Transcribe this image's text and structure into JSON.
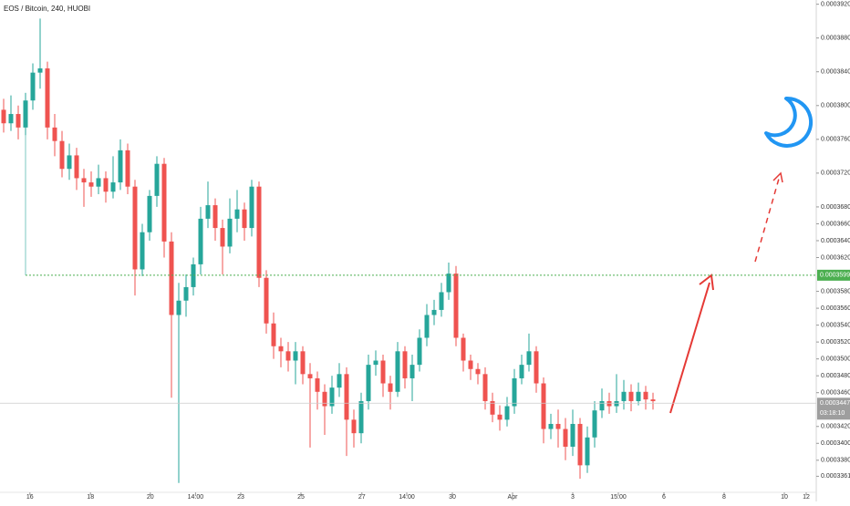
{
  "chart_data": {
    "type": "candlestick",
    "title": "EOS / Bitcoin, 240, HUOBI",
    "up_color": "#26a69a",
    "down_color": "#ef5350",
    "open": [
      0.0003795,
      0.0003779,
      0.000379,
      0.0003774,
      0.0003806,
      0.0003839,
      0.0003844,
      0.0003774,
      0.0003758,
      0.0003725,
      0.0003741,
      0.0003714,
      0.0003709,
      0.0003704,
      0.0003714,
      0.0003698,
      0.0003709,
      0.0003747,
      0.0003704,
      0.0003606,
      0.000365,
      0.0003693,
      0.0003731,
      0.0003639,
      0.0003552,
      0.0003569,
      0.0003585,
      0.0003612,
      0.0003666,
      0.0003682,
      0.0003655,
      0.0003633,
      0.0003666,
      0.0003677,
      0.0003655,
      0.0003704,
      0.0003596,
      0.0003542,
      0.0003515,
      0.0003509,
      0.0003498,
      0.0003509,
      0.0003482,
      0.0003477,
      0.0003461,
      0.0003444,
      0.0003466,
      0.0003482,
      0.0003428,
      0.0003412,
      0.000345,
      0.0003493,
      0.0003498,
      0.0003471,
      0.0003461,
      0.0003509,
      0.0003477,
      0.0003493,
      0.0003525,
      0.0003552,
      0.0003558,
      0.0003579,
      0.0003601,
      0.0003525,
      0.0003498,
      0.0003488,
      0.0003482,
      0.000345,
      0.0003434,
      0.0003428,
      0.0003444,
      0.0003477,
      0.0003493,
      0.0003509,
      0.0003471,
      0.0003417,
      0.0003423,
      0.0003417,
      0.0003396,
      0.0003423,
      0.0003374,
      0.0003407,
      0.0003439,
      0.000345,
      0.0003444,
      0.000345,
      0.0003461,
      0.000345,
      0.0003461,
      0.0003452
    ],
    "high": [
      0.0003808,
      0.0003812,
      0.00038,
      0.0003815,
      0.000385,
      0.0003903,
      0.0003852,
      0.000379,
      0.000377,
      0.0003755,
      0.000375,
      0.0003725,
      0.0003722,
      0.000373,
      0.0003722,
      0.000374,
      0.000376,
      0.0003755,
      0.0003712,
      0.000366,
      0.00037,
      0.000374,
      0.0003738,
      0.000365,
      0.000359,
      0.00036,
      0.000362,
      0.000368,
      0.000371,
      0.000369,
      0.0003665,
      0.000369,
      0.00037,
      0.0003685,
      0.0003712,
      0.000371,
      0.0003605,
      0.0003555,
      0.0003525,
      0.000352,
      0.000352,
      0.0003515,
      0.0003495,
      0.0003485,
      0.000347,
      0.000348,
      0.0003495,
      0.000349,
      0.000344,
      0.000346,
      0.0003505,
      0.000351,
      0.0003505,
      0.000348,
      0.000352,
      0.0003515,
      0.0003505,
      0.0003535,
      0.0003565,
      0.000357,
      0.000359,
      0.0003614,
      0.000361,
      0.000353,
      0.0003505,
      0.0003495,
      0.000349,
      0.000346,
      0.0003445,
      0.0003455,
      0.0003488,
      0.0003505,
      0.000353,
      0.0003515,
      0.0003478,
      0.0003435,
      0.000344,
      0.000343,
      0.000344,
      0.000343,
      0.000342,
      0.000345,
      0.0003465,
      0.000346,
      0.0003482,
      0.0003475,
      0.000347,
      0.0003472,
      0.0003468,
      0.000346
    ],
    "low": [
      0.0003768,
      0.000377,
      0.000376,
      0.0003765,
      0.0003795,
      0.000382,
      0.000376,
      0.000374,
      0.0003715,
      0.0003712,
      0.00037,
      0.000368,
      0.0003692,
      0.0003695,
      0.0003685,
      0.000369,
      0.00037,
      0.0003695,
      0.0003575,
      0.0003598,
      0.000364,
      0.000368,
      0.000362,
      0.0003454,
      0.0003353,
      0.000355,
      0.0003575,
      0.00036,
      0.0003655,
      0.000364,
      0.00036,
      0.0003625,
      0.000365,
      0.000364,
      0.0003645,
      0.0003585,
      0.000353,
      0.00035,
      0.000349,
      0.0003485,
      0.000347,
      0.000347,
      0.0003395,
      0.000344,
      0.000341,
      0.0003435,
      0.0003455,
      0.0003385,
      0.0003395,
      0.00034,
      0.000344,
      0.000348,
      0.0003455,
      0.000344,
      0.0003455,
      0.0003465,
      0.000345,
      0.0003485,
      0.0003515,
      0.000354,
      0.000355,
      0.000357,
      0.0003515,
      0.0003485,
      0.0003475,
      0.000347,
      0.000344,
      0.0003425,
      0.0003415,
      0.000342,
      0.0003435,
      0.000347,
      0.0003485,
      0.000346,
      0.00034,
      0.0003405,
      0.0003395,
      0.000338,
      0.0003385,
      0.0003358,
      0.0003365,
      0.0003395,
      0.000343,
      0.0003435,
      0.0003436,
      0.000344,
      0.0003438,
      0.0003445,
      0.000344,
      0.000344
    ],
    "close": [
      0.0003779,
      0.000379,
      0.0003774,
      0.0003806,
      0.0003839,
      0.0003844,
      0.0003774,
      0.0003758,
      0.0003725,
      0.0003741,
      0.0003714,
      0.0003709,
      0.0003704,
      0.0003714,
      0.0003698,
      0.0003709,
      0.0003747,
      0.0003704,
      0.0003606,
      0.000365,
      0.0003693,
      0.0003731,
      0.0003639,
      0.0003552,
      0.0003569,
      0.0003585,
      0.0003612,
      0.0003666,
      0.0003682,
      0.0003655,
      0.0003633,
      0.0003666,
      0.0003677,
      0.0003655,
      0.0003704,
      0.0003596,
      0.0003542,
      0.0003515,
      0.0003509,
      0.0003498,
      0.0003509,
      0.0003482,
      0.0003477,
      0.0003461,
      0.0003444,
      0.0003466,
      0.0003482,
      0.0003428,
      0.0003412,
      0.000345,
      0.0003493,
      0.0003498,
      0.0003471,
      0.0003461,
      0.0003509,
      0.0003477,
      0.0003493,
      0.0003525,
      0.0003552,
      0.0003558,
      0.0003579,
      0.0003601,
      0.0003525,
      0.0003498,
      0.0003488,
      0.0003482,
      0.000345,
      0.0003434,
      0.0003428,
      0.0003444,
      0.0003477,
      0.0003493,
      0.0003509,
      0.0003471,
      0.0003417,
      0.0003423,
      0.0003417,
      0.0003396,
      0.0003423,
      0.0003374,
      0.0003407,
      0.0003439,
      0.000345,
      0.0003444,
      0.000345,
      0.0003461,
      0.000345,
      0.0003461,
      0.0003452,
      0.000345
    ],
    "xlim": [
      -0.5,
      111.375
    ],
    "xticks": [
      {
        "value": 3.6,
        "label": "16"
      },
      {
        "value": 11.9,
        "label": "18"
      },
      {
        "value": 20.1,
        "label": "20"
      },
      {
        "value": 26.3,
        "label": "14:00"
      },
      {
        "value": 32.5,
        "label": "23"
      },
      {
        "value": 40.75,
        "label": "25"
      },
      {
        "value": 49.1,
        "label": "27"
      },
      {
        "value": 55.25,
        "label": "14:00"
      },
      {
        "value": 61.5,
        "label": "30"
      },
      {
        "value": 69.75,
        "label": "Apr"
      },
      {
        "value": 78,
        "label": "3"
      },
      {
        "value": 84.25,
        "label": "15:00"
      },
      {
        "value": 90.5,
        "label": "6"
      },
      {
        "value": 98.75,
        "label": "8"
      },
      {
        "value": 107,
        "label": "10"
      },
      {
        "value": 110,
        "label": "12"
      }
    ],
    "ylim": [
      0.0003342,
      0.0003925
    ],
    "yticks": [
      {
        "value": 0.000392,
        "label": "0.00039200"
      },
      {
        "value": 0.000388,
        "label": "0.00038800"
      },
      {
        "value": 0.000384,
        "label": "0.00038400"
      },
      {
        "value": 0.00038,
        "label": "0.00038000"
      },
      {
        "value": 0.000376,
        "label": "0.00037600"
      },
      {
        "value": 0.000372,
        "label": "0.00037200"
      },
      {
        "value": 0.000368,
        "label": "0.00036800"
      },
      {
        "value": 0.000366,
        "label": "0.00036600"
      },
      {
        "value": 0.000364,
        "label": "0.00036400"
      },
      {
        "value": 0.000362,
        "label": "0.00036200"
      },
      {
        "value": 0.000358,
        "label": "0.00035800"
      },
      {
        "value": 0.000356,
        "label": "0.00035600"
      },
      {
        "value": 0.000354,
        "label": "0.00035400"
      },
      {
        "value": 0.000352,
        "label": "0.00035200"
      },
      {
        "value": 0.00035,
        "label": "0.00035000"
      },
      {
        "value": 0.000348,
        "label": "0.00034800"
      },
      {
        "value": 0.000346,
        "label": "0.00034600"
      },
      {
        "value": 0.000342,
        "label": "0.00034200"
      },
      {
        "value": 0.00034,
        "label": "0.00034000"
      },
      {
        "value": 0.000338,
        "label": "0.00033800"
      },
      {
        "value": 0.0003361,
        "label": "0.00033610"
      }
    ],
    "level": {
      "value": 0.00035991,
      "label": "0.00035991",
      "color": "#4caf50"
    },
    "last_price": {
      "value": 0.00034475,
      "label": "0.00034475",
      "countdown": "03:18:10",
      "color": "#9e9e9e"
    }
  }
}
